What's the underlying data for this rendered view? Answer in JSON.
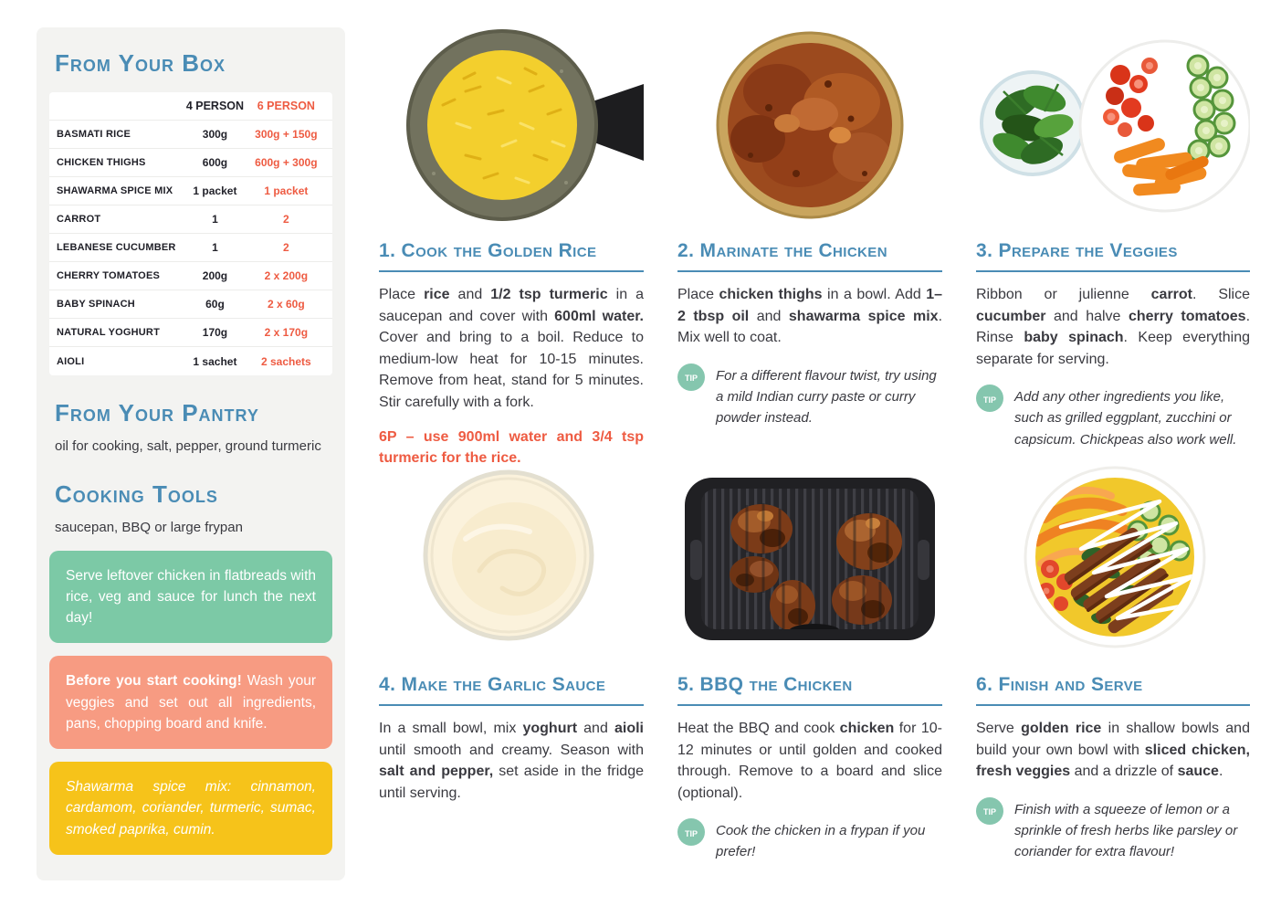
{
  "colors": {
    "blue": "#4a8cb5",
    "red": "#ee5b42",
    "green": "#7cc9a6",
    "salmon": "#f79b82",
    "yellow": "#f6c31a",
    "teal": "#85c6ae",
    "sidebarBg": "#f3f3f1"
  },
  "tip_label": "tip",
  "sidebar": {
    "box_title": "From Your Box",
    "table": {
      "headers": [
        "4 PERSON",
        "6 PERSON"
      ],
      "rows": [
        {
          "name": "BASMATI RICE",
          "p4": "300g",
          "p6": "300g + 150g"
        },
        {
          "name": "CHICKEN THIGHS",
          "p4": "600g",
          "p6": "600g + 300g"
        },
        {
          "name": "SHAWARMA SPICE MIX",
          "p4": "1 packet",
          "p6": "1 packet"
        },
        {
          "name": "CARROT",
          "p4": "1",
          "p6": "2"
        },
        {
          "name": "LEBANESE CUCUMBER",
          "p4": "1",
          "p6": "2"
        },
        {
          "name": "CHERRY TOMATOES",
          "p4": "200g",
          "p6": "2 x 200g"
        },
        {
          "name": "BABY SPINACH",
          "p4": "60g",
          "p6": "2 x 60g"
        },
        {
          "name": "NATURAL YOGHURT",
          "p4": "170g",
          "p6": "2 x 170g"
        },
        {
          "name": "AIOLI",
          "p4": "1 sachet",
          "p6": "2 sachets"
        }
      ]
    },
    "pantry_title": "From Your Pantry",
    "pantry_text": "oil for cooking, salt, pepper, ground turmeric",
    "tools_title": "Cooking Tools",
    "tools_text": "saucepan, BBQ or large frypan",
    "callout_green": [
      {
        "t": "Serve leftover chicken in flatbreads with rice, veg and sauce for lunch the next day!"
      }
    ],
    "callout_salmon": [
      {
        "t": "Before you start cooking!",
        "b": true
      },
      {
        "t": " Wash your veggies and set out all ingredients, pans, chopping board and knife."
      }
    ],
    "callout_yellow": [
      {
        "t": "Shawarma spice mix: cinnamon, cardamom, coriander, turmeric, sumac, smoked paprika, cumin.",
        "i": true
      }
    ]
  },
  "steps": [
    {
      "title": "1. Cook the Golden Rice",
      "body": [
        {
          "t": "Place "
        },
        {
          "t": "rice",
          "b": true
        },
        {
          "t": " and "
        },
        {
          "t": "1/2 tsp turmeric",
          "b": true
        },
        {
          "t": " in a saucepan and cover with "
        },
        {
          "t": "600ml water.",
          "b": true
        },
        {
          "t": " Cover and bring to a boil. Reduce to medium-low heat for 10-15 minutes. Remove from heat, stand for 5 minutes. Stir carefully with a fork."
        }
      ],
      "note": "6P – use 900ml water and 3/4 tsp turmeric for the rice."
    },
    {
      "title": "2. Marinate the Chicken",
      "body": [
        {
          "t": "Place "
        },
        {
          "t": "chicken thighs",
          "b": true
        },
        {
          "t": " in a bowl. Add "
        },
        {
          "t": "1–2 tbsp oil",
          "b": true
        },
        {
          "t": " and "
        },
        {
          "t": "shawarma spice mix",
          "b": true
        },
        {
          "t": ". Mix well to coat."
        }
      ],
      "tip": "For a different flavour twist, try using a mild Indian curry paste or curry powder instead."
    },
    {
      "title": "3. Prepare the Veggies",
      "body": [
        {
          "t": "Ribbon or julienne "
        },
        {
          "t": "carrot",
          "b": true
        },
        {
          "t": ". Slice "
        },
        {
          "t": "cucumber",
          "b": true
        },
        {
          "t": " and halve "
        },
        {
          "t": "cherry tomatoes",
          "b": true
        },
        {
          "t": ". Rinse "
        },
        {
          "t": "baby spinach",
          "b": true
        },
        {
          "t": ". Keep everything separate for serving."
        }
      ],
      "tip": "Add any other ingredients you like, such as grilled eggplant, zucchini or capsicum. Chickpeas also work well."
    },
    {
      "title": "4. Make the Garlic Sauce",
      "body": [
        {
          "t": "In a small bowl, mix "
        },
        {
          "t": "yoghurt",
          "b": true
        },
        {
          "t": " and "
        },
        {
          "t": "aioli",
          "b": true
        },
        {
          "t": " until smooth and creamy. Season with "
        },
        {
          "t": "salt and pepper,",
          "b": true
        },
        {
          "t": " set aside in the fridge until serving."
        }
      ]
    },
    {
      "title": "5. BBQ the Chicken",
      "body": [
        {
          "t": "Heat the BBQ and cook "
        },
        {
          "t": "chicken",
          "b": true
        },
        {
          "t": " for 10-12 minutes or until golden and cooked through. Remove to a board and slice (optional)."
        }
      ],
      "tip": "Cook the chicken in a frypan if you prefer!"
    },
    {
      "title": "6. Finish and Serve",
      "body": [
        {
          "t": "Serve "
        },
        {
          "t": "golden rice",
          "b": true
        },
        {
          "t": " in shallow bowls and build your own bowl with "
        },
        {
          "t": "sliced chicken, fresh veggies",
          "b": true
        },
        {
          "t": " and a drizzle of "
        },
        {
          "t": "sauce",
          "b": true
        },
        {
          "t": "."
        }
      ],
      "tip": "Finish with a squeeze of lemon or a sprinkle of fresh herbs like parsley or coriander for extra flavour!"
    }
  ]
}
